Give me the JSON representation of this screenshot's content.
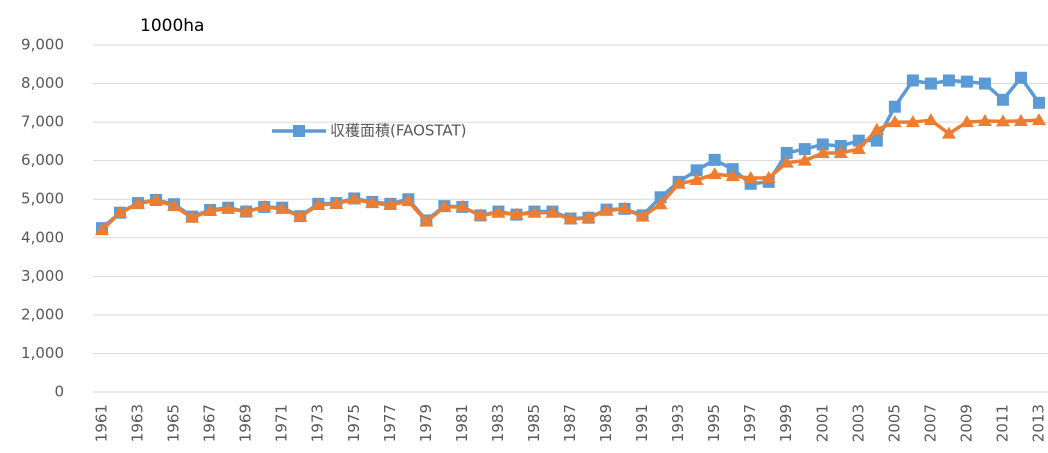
{
  "chart_data": {
    "type": "line",
    "y_unit": "1000ha",
    "categories": [
      "1961",
      null,
      "1963",
      null,
      "1965",
      null,
      "1967",
      null,
      "1969",
      null,
      "1971",
      null,
      "1973",
      null,
      "1975",
      null,
      "1977",
      null,
      "1979",
      null,
      "1981",
      null,
      "1983",
      null,
      "1985",
      null,
      "1987",
      null,
      "1989",
      null,
      "1991",
      null,
      "1993",
      null,
      "1995",
      null,
      "1997",
      null,
      "1999",
      null,
      "2001",
      null,
      "2003",
      null,
      "2005",
      null,
      "2007",
      null,
      "2009",
      null,
      "2011",
      null,
      "2013"
    ],
    "series": [
      {
        "name": "収穫面積(FAOSTAT)",
        "color": "#5b9bd5",
        "marker": "square",
        "values": [
          4250,
          4650,
          4900,
          4980,
          4870,
          4550,
          4720,
          4780,
          4680,
          4800,
          4780,
          4560,
          4880,
          4900,
          5020,
          4930,
          4880,
          5000,
          4450,
          4820,
          4800,
          4580,
          4680,
          4600,
          4680,
          4680,
          4500,
          4520,
          4730,
          4750,
          4580,
          5050,
          5450,
          5750,
          6020,
          5780,
          5400,
          5450,
          6200,
          6300,
          6420,
          6380,
          6520,
          6520,
          7400,
          8080,
          8000,
          8080,
          8050,
          8000,
          7580,
          8150,
          7500
        ]
      },
      {
        "color": "#ed7d31",
        "marker": "triangle",
        "values": [
          4200,
          4650,
          4880,
          4980,
          4820,
          4520,
          4700,
          4750,
          4680,
          4800,
          4750,
          4550,
          4850,
          4880,
          5000,
          4900,
          4850,
          4950,
          4420,
          4800,
          4800,
          4580,
          4650,
          4600,
          4650,
          4650,
          4480,
          4520,
          4700,
          4750,
          4550,
          4870,
          5400,
          5500,
          5650,
          5600,
          5550,
          5550,
          5950,
          6000,
          6200,
          6200,
          6300,
          6800,
          7000,
          7000,
          7050,
          6700,
          7000,
          7030,
          7020,
          7030,
          7050
        ]
      }
    ],
    "ylim": [
      0,
      9000
    ],
    "yticks": [
      0,
      {
        "value": 1000,
        "label": "1,000"
      },
      {
        "value": 2000,
        "label": "2,000"
      },
      {
        "value": 3000,
        "label": "3,000"
      },
      {
        "value": 4000,
        "label": "4,000"
      },
      {
        "value": 5000,
        "label": "5,000"
      },
      {
        "value": 6000,
        "label": "6,000"
      },
      {
        "value": 7000,
        "label": "7,000"
      },
      {
        "value": 8000,
        "label": "8,000"
      },
      {
        "value": 9000,
        "label": "9,000"
      }
    ],
    "grid": true,
    "legend": "inside"
  }
}
